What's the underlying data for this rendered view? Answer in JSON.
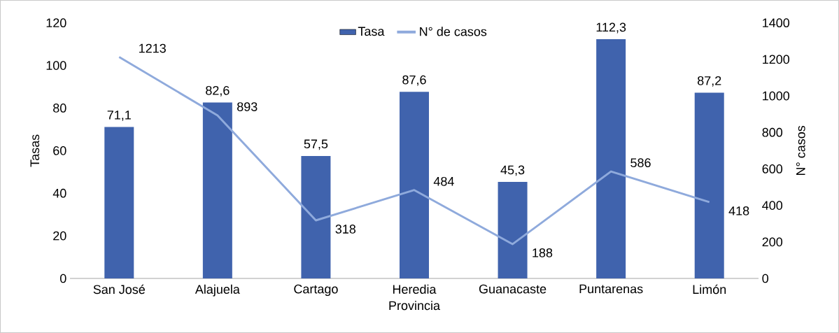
{
  "chart_data": {
    "type": "bar",
    "categories": [
      "San José",
      "Alajuela",
      "Cartago",
      "Heredia",
      "Guanacaste",
      "Puntarenas",
      "Limón"
    ],
    "xlabel": "Provincia",
    "ylabel": "Tasas",
    "y2label": "N° casos",
    "ylim": [
      0,
      120
    ],
    "yticks": [
      0,
      20,
      40,
      60,
      80,
      100,
      120
    ],
    "y2lim": [
      0,
      1400
    ],
    "y2ticks": [
      0,
      200,
      400,
      600,
      800,
      1000,
      1200,
      1400
    ],
    "legend": "top",
    "series": [
      {
        "name": "Tasa",
        "color": "#4063ad",
        "values": [
          71.1,
          82.6,
          57.5,
          87.6,
          45.3,
          112.3,
          87.2
        ],
        "value_labels": [
          "71,1",
          "82,6",
          "57,5",
          "87,6",
          "45,3",
          "112,3",
          "87,2"
        ]
      },
      {
        "name": "N° de casos",
        "type": "line",
        "axis": "y2",
        "color": "#8faadc",
        "values": [
          1213,
          893,
          318,
          484,
          188,
          586,
          418
        ],
        "value_labels": [
          "1213",
          "893",
          "318",
          "484",
          "188",
          "586",
          "418"
        ]
      }
    ]
  }
}
